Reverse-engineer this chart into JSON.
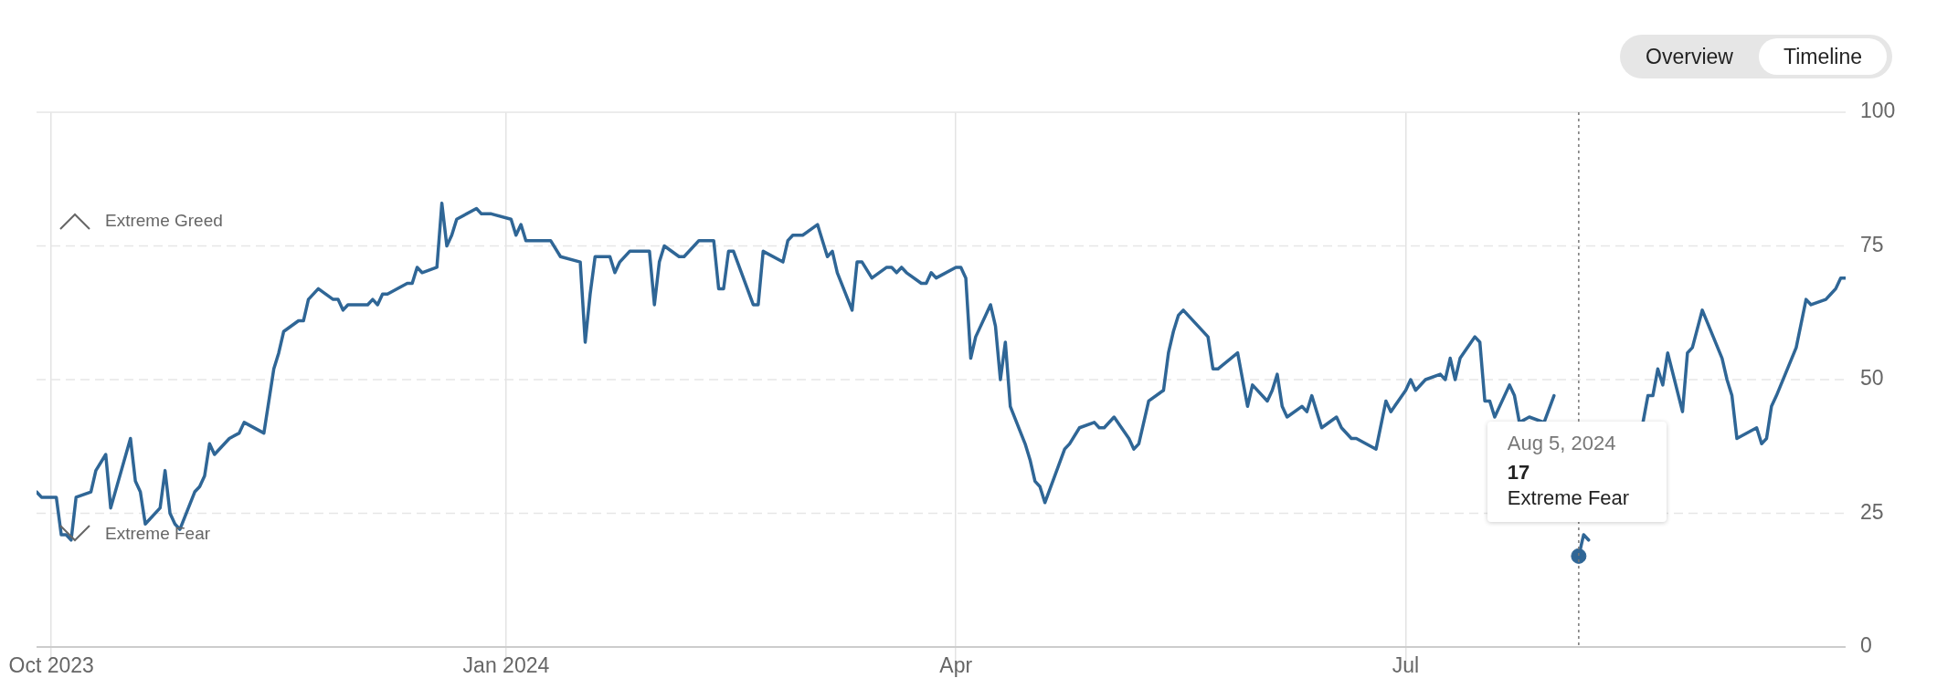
{
  "chart_data": {
    "type": "line",
    "xlim": [
      "2023-09-28",
      "2024-09-28"
    ],
    "xticks": [
      {
        "value": "2023-10-01",
        "label": "Oct 2023"
      },
      {
        "value": "2024-01-01",
        "label": "Jan 2024"
      },
      {
        "value": "2024-04-01",
        "label": "Apr"
      },
      {
        "value": "2024-07-01",
        "label": "Jul"
      }
    ],
    "ylim": [
      0,
      100
    ],
    "yticks": [
      0,
      25,
      50,
      75,
      100
    ],
    "grid": true,
    "legend": false,
    "marker": "none",
    "line_style": "solid",
    "series": [
      {
        "color": "#2f6696",
        "x": [
          "2023-09-28",
          "2023-09-29",
          "2023-10-02",
          "2023-10-03",
          "2023-10-04",
          "2023-10-05",
          "2023-10-06",
          "2023-10-09",
          "2023-10-10",
          "2023-10-12",
          "2023-10-13",
          "2023-10-17",
          "2023-10-18",
          "2023-10-19",
          "2023-10-20",
          "2023-10-23",
          "2023-10-24",
          "2023-10-25",
          "2023-10-26",
          "2023-10-27",
          "2023-10-30",
          "2023-10-31",
          "2023-11-01",
          "2023-11-02",
          "2023-11-03",
          "2023-11-06",
          "2023-11-08",
          "2023-11-09",
          "2023-11-13",
          "2023-11-15",
          "2023-11-16",
          "2023-11-17",
          "2023-11-20",
          "2023-11-21",
          "2023-11-22",
          "2023-11-24",
          "2023-11-27",
          "2023-11-28",
          "2023-11-29",
          "2023-11-30",
          "2023-12-04",
          "2023-12-05",
          "2023-12-06",
          "2023-12-07",
          "2023-12-08",
          "2023-12-12",
          "2023-12-13",
          "2023-12-14",
          "2023-12-15",
          "2023-12-18",
          "2023-12-19",
          "2023-12-20",
          "2023-12-21",
          "2023-12-22",
          "2023-12-26",
          "2023-12-27",
          "2023-12-28",
          "2023-12-29",
          "2024-01-02",
          "2024-01-03",
          "2024-01-04",
          "2024-01-05",
          "2024-01-08",
          "2024-01-09",
          "2024-01-10",
          "2024-01-12",
          "2024-01-16",
          "2024-01-17",
          "2024-01-18",
          "2024-01-19",
          "2024-01-22",
          "2024-01-23",
          "2024-01-24",
          "2024-01-26",
          "2024-01-30",
          "2024-01-31",
          "2024-02-01",
          "2024-02-02",
          "2024-02-05",
          "2024-02-06",
          "2024-02-09",
          "2024-02-12",
          "2024-02-13",
          "2024-02-14",
          "2024-02-15",
          "2024-02-16",
          "2024-02-20",
          "2024-02-21",
          "2024-02-22",
          "2024-02-26",
          "2024-02-27",
          "2024-02-28",
          "2024-02-29",
          "2024-03-01",
          "2024-03-04",
          "2024-03-06",
          "2024-03-07",
          "2024-03-08",
          "2024-03-11",
          "2024-03-12",
          "2024-03-13",
          "2024-03-15",
          "2024-03-18",
          "2024-03-19",
          "2024-03-20",
          "2024-03-21",
          "2024-03-22",
          "2024-03-25",
          "2024-03-26",
          "2024-03-27",
          "2024-03-28",
          "2024-04-01",
          "2024-04-02",
          "2024-04-03",
          "2024-04-04",
          "2024-04-05",
          "2024-04-08",
          "2024-04-09",
          "2024-04-10",
          "2024-04-11",
          "2024-04-12",
          "2024-04-15",
          "2024-04-16",
          "2024-04-17",
          "2024-04-18",
          "2024-04-19",
          "2024-04-23",
          "2024-04-24",
          "2024-04-26",
          "2024-04-29",
          "2024-04-30",
          "2024-05-01",
          "2024-05-03",
          "2024-05-06",
          "2024-05-07",
          "2024-05-08",
          "2024-05-10",
          "2024-05-13",
          "2024-05-14",
          "2024-05-15",
          "2024-05-16",
          "2024-05-17",
          "2024-05-20",
          "2024-05-22",
          "2024-05-23",
          "2024-05-24",
          "2024-05-28",
          "2024-05-30",
          "2024-05-31",
          "2024-06-03",
          "2024-06-04",
          "2024-06-05",
          "2024-06-06",
          "2024-06-07",
          "2024-06-10",
          "2024-06-11",
          "2024-06-12",
          "2024-06-13",
          "2024-06-14",
          "2024-06-17",
          "2024-06-18",
          "2024-06-20",
          "2024-06-21",
          "2024-06-25",
          "2024-06-27",
          "2024-06-28",
          "2024-07-01",
          "2024-07-02",
          "2024-07-03",
          "2024-07-05",
          "2024-07-08",
          "2024-07-09",
          "2024-07-10",
          "2024-07-11",
          "2024-07-12",
          "2024-07-15",
          "2024-07-16",
          "2024-07-17",
          "2024-07-18",
          "2024-07-19",
          "2024-07-22",
          "2024-07-23",
          "2024-07-24",
          "2024-07-26",
          "2024-07-29",
          "2024-07-31",
          "2024-08-01",
          "2024-08-05",
          "2024-08-06",
          "2024-08-07",
          "2024-08-08",
          "2024-08-18",
          "2024-08-19",
          "2024-08-20",
          "2024-08-21",
          "2024-08-22",
          "2024-08-23",
          "2024-08-26",
          "2024-08-27",
          "2024-08-28",
          "2024-08-30",
          "2024-09-03",
          "2024-09-04",
          "2024-09-05",
          "2024-09-06",
          "2024-09-10",
          "2024-09-11",
          "2024-09-12",
          "2024-09-13",
          "2024-09-14",
          "2024-09-18",
          "2024-09-20",
          "2024-09-21",
          "2024-09-24",
          "2024-09-25",
          "2024-09-26",
          "2024-09-27",
          "2024-09-28"
        ],
        "values": [
          29,
          28,
          28,
          21,
          21,
          20,
          28,
          29,
          33,
          36,
          26,
          39,
          31,
          29,
          23,
          26,
          33,
          25,
          23,
          22,
          29,
          30,
          32,
          38,
          36,
          39,
          40,
          42,
          40,
          52,
          55,
          59,
          61,
          61,
          65,
          67,
          65,
          65,
          63,
          64,
          64,
          65,
          64,
          66,
          66,
          68,
          68,
          71,
          70,
          71,
          83,
          75,
          77,
          80,
          82,
          81,
          81,
          81,
          80,
          77,
          79,
          76,
          76,
          76,
          76,
          73,
          72,
          57,
          66,
          73,
          73,
          70,
          72,
          74,
          74,
          64,
          72,
          75,
          73,
          73,
          76,
          76,
          67,
          67,
          74,
          74,
          64,
          64,
          74,
          72,
          76,
          77,
          77,
          77,
          79,
          73,
          74,
          70,
          63,
          72,
          72,
          69,
          71,
          71,
          70,
          71,
          70,
          68,
          68,
          70,
          69,
          71,
          71,
          69,
          54,
          58,
          64,
          60,
          50,
          57,
          45,
          38,
          35,
          31,
          30,
          27,
          37,
          38,
          41,
          42,
          41,
          41,
          43,
          39,
          37,
          38,
          46,
          48,
          55,
          59,
          62,
          63,
          60,
          58,
          52,
          52,
          55,
          45,
          49,
          46,
          48,
          51,
          45,
          43,
          45,
          44,
          47,
          44,
          41,
          43,
          41,
          39,
          39,
          37,
          46,
          44,
          48,
          50,
          48,
          50,
          51,
          50,
          54,
          50,
          54,
          58,
          57,
          46,
          46,
          43,
          49,
          47,
          42,
          43,
          42,
          47,
          null,
          17,
          21,
          20,
          null,
          42,
          47,
          47,
          52,
          49,
          55,
          44,
          55,
          56,
          63,
          54,
          50,
          47,
          39,
          41,
          38,
          39,
          45,
          47,
          56,
          65,
          64,
          65,
          66,
          67,
          69,
          69
        ]
      },
      {
        "type": "scatter",
        "marker": "circle",
        "color": "#2f6696",
        "x": [
          "2024-08-05"
        ],
        "values": [
          17
        ]
      }
    ],
    "ref_lines": [
      {
        "axis": "x",
        "value": "2024-08-05",
        "line_style": "dotted",
        "color": "#777777"
      }
    ],
    "annotations": [
      "Overview",
      "Timeline",
      "Extreme Greed",
      "Extreme Fear",
      "Aug 5, 2024",
      "17",
      "Extreme Fear"
    ]
  }
}
